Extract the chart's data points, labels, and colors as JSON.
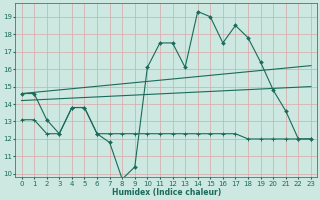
{
  "xlabel": "Humidex (Indice chaleur)",
  "xlim": [
    -0.5,
    23.5
  ],
  "ylim": [
    9.8,
    19.8
  ],
  "yticks": [
    10,
    11,
    12,
    13,
    14,
    15,
    16,
    17,
    18,
    19
  ],
  "xticks": [
    0,
    1,
    2,
    3,
    4,
    5,
    6,
    7,
    8,
    9,
    10,
    11,
    12,
    13,
    14,
    15,
    16,
    17,
    18,
    19,
    20,
    21,
    22,
    23
  ],
  "bg_color": "#cce8e0",
  "line_color": "#1a6b5a",
  "grid_color": "#d8a8a8",
  "line1_x": [
    0,
    1,
    2,
    3,
    4,
    5,
    6,
    7,
    8,
    9,
    10,
    11,
    12,
    13,
    14,
    15,
    16,
    17,
    18,
    19,
    20,
    21,
    22,
    23
  ],
  "line1_y": [
    14.6,
    14.6,
    13.1,
    12.3,
    13.8,
    13.8,
    12.3,
    11.8,
    9.7,
    10.4,
    16.1,
    17.5,
    17.5,
    16.1,
    19.3,
    19.0,
    17.5,
    18.5,
    17.8,
    16.4,
    14.8,
    13.6,
    12.0,
    12.0
  ],
  "line2_x": [
    0,
    23
  ],
  "line2_y": [
    14.6,
    16.2
  ],
  "line3_x": [
    0,
    23
  ],
  "line3_y": [
    14.2,
    15.0
  ],
  "line4_x": [
    0,
    1,
    2,
    3,
    4,
    5,
    6,
    7,
    8,
    9,
    10,
    11,
    12,
    13,
    14,
    15,
    16,
    17,
    18,
    19,
    20,
    21,
    22,
    23
  ],
  "line4_y": [
    13.1,
    13.1,
    12.3,
    12.3,
    13.8,
    13.8,
    12.3,
    12.3,
    12.3,
    12.3,
    12.3,
    12.3,
    12.3,
    12.3,
    12.3,
    12.3,
    12.3,
    12.3,
    12.0,
    12.0,
    12.0,
    12.0,
    12.0,
    12.0
  ]
}
